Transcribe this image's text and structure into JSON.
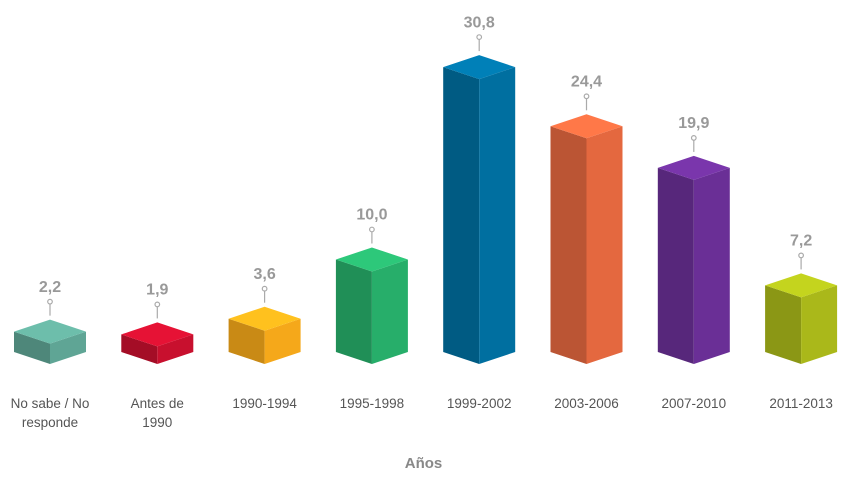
{
  "chart_data": {
    "type": "bar3d",
    "x_label": "Años",
    "categories": [
      "No sabe / No responde",
      "Antes de 1990",
      "1990-1994",
      "1995-1998",
      "1999-2002",
      "2003-2006",
      "2007-2010",
      "2011-2013"
    ],
    "values": [
      2.2,
      1.9,
      3.6,
      10.0,
      30.8,
      24.4,
      19.9,
      7.2
    ],
    "value_labels": [
      "2,2",
      "1,9",
      "3,6",
      "10,0",
      "30,8",
      "24,4",
      "19,9",
      "7,2"
    ],
    "colors": [
      "#5fa595",
      "#c8102e",
      "#f5a81a",
      "#27ae6a",
      "#006fa0",
      "#e4683f",
      "#6a2f96",
      "#aab81a"
    ]
  }
}
